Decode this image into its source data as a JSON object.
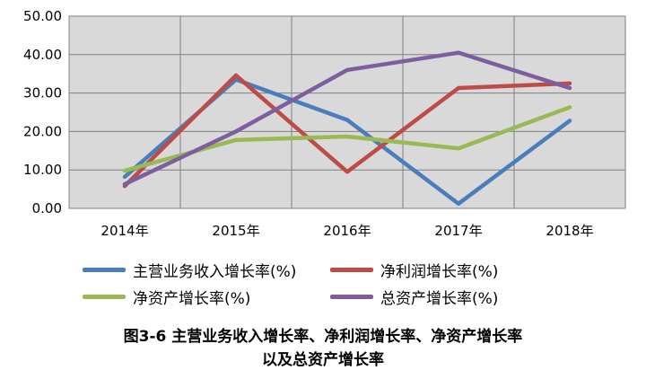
{
  "chart_data": {
    "type": "line",
    "categories": [
      "2014年",
      "2015年",
      "2016年",
      "2017年",
      "2018年"
    ],
    "ylim": [
      0,
      50
    ],
    "yticks": [
      "0.00",
      "10.00",
      "20.00",
      "30.00",
      "40.00",
      "50.00"
    ],
    "grid": true,
    "legend_position": "bottom",
    "series": [
      {
        "name": "主营业务收入增长率(%)",
        "color": "#4a7ebb",
        "values": [
          8.2,
          33.5,
          23.0,
          1.2,
          22.8
        ]
      },
      {
        "name": "净利润增长率(%)",
        "color": "#be4b48",
        "values": [
          5.8,
          34.6,
          9.5,
          31.3,
          32.5
        ]
      },
      {
        "name": "净资产增长率(%)",
        "color": "#98b954",
        "values": [
          9.8,
          17.8,
          18.7,
          15.6,
          26.3
        ]
      },
      {
        "name": "总资产增长率(%)",
        "color": "#7d5fa0",
        "values": [
          6.3,
          20.0,
          36.0,
          40.5,
          31.3
        ]
      }
    ]
  },
  "caption": {
    "line1": "图3-6  主营业务收入增长率、净利润增长率、净资产增长率",
    "line2": "以及总资产增长率"
  }
}
